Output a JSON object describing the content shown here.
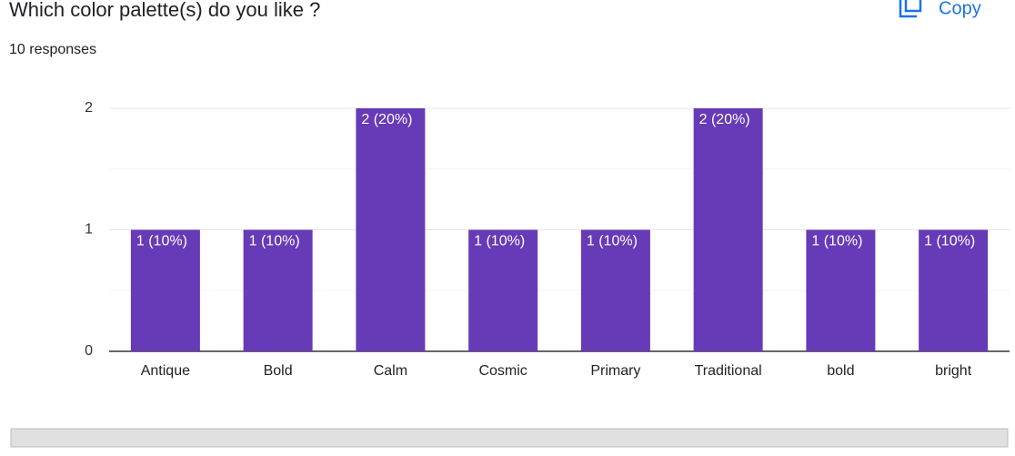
{
  "chart_data": {
    "type": "bar",
    "title": "Which color palette(s) do you like ?",
    "subtitle": "10 responses",
    "copy_button": "Copy",
    "categories": [
      "Antique",
      "Bold",
      "Calm",
      "Cosmic",
      "Primary",
      "Traditional",
      "bold",
      "bright"
    ],
    "values": [
      1,
      1,
      2,
      1,
      1,
      2,
      1,
      1
    ],
    "value_labels": [
      "1 (10%)",
      "1 (10%)",
      "2 (20%)",
      "1 (10%)",
      "1 (10%)",
      "2 (20%)",
      "1 (10%)",
      "1 (10%)"
    ],
    "color": "#673ab7",
    "ylim": [
      0,
      2
    ],
    "yticks": [
      0,
      1,
      2
    ],
    "minor_yticks": [
      0.5,
      1.5
    ],
    "grid": true
  }
}
